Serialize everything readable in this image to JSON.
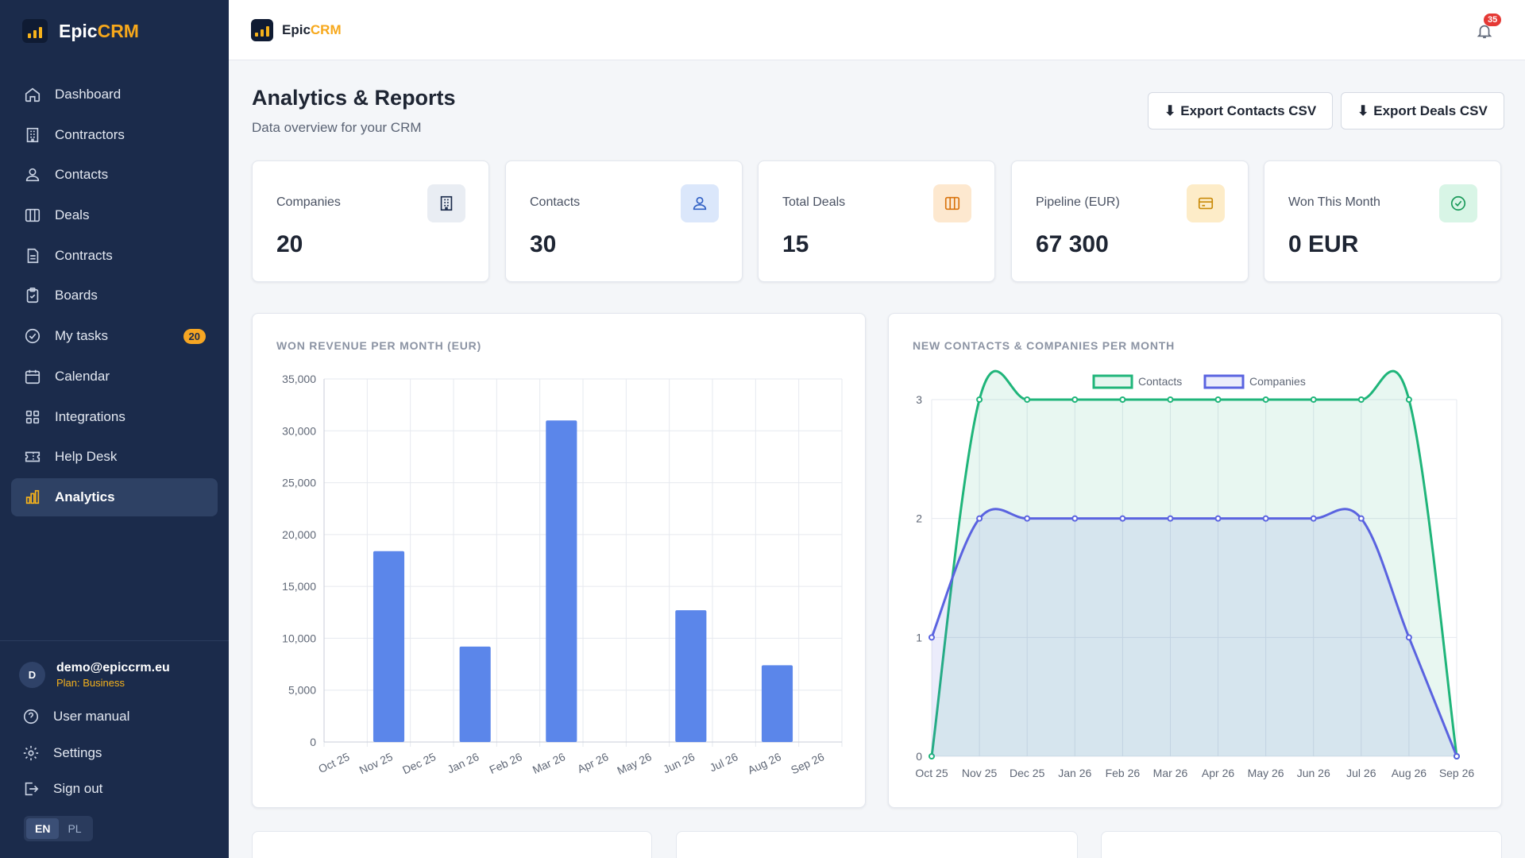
{
  "brand": {
    "name_part1": "Epic",
    "name_part2": "CRM"
  },
  "sidebar": {
    "items": [
      {
        "label": "Dashboard",
        "icon": "home-icon"
      },
      {
        "label": "Contractors",
        "icon": "building-icon"
      },
      {
        "label": "Contacts",
        "icon": "users-icon"
      },
      {
        "label": "Deals",
        "icon": "columns-icon"
      },
      {
        "label": "Contracts",
        "icon": "document-icon"
      },
      {
        "label": "Boards",
        "icon": "clipboard-icon"
      },
      {
        "label": "My tasks",
        "icon": "check-circle-icon",
        "badge": "20"
      },
      {
        "label": "Calendar",
        "icon": "calendar-icon"
      },
      {
        "label": "Integrations",
        "icon": "grid-icon"
      },
      {
        "label": "Help Desk",
        "icon": "ticket-icon"
      },
      {
        "label": "Analytics",
        "icon": "bar-chart-icon",
        "active": true
      }
    ],
    "user": {
      "avatar": "D",
      "email": "demo@epiccrm.eu",
      "plan": "Plan: Business"
    },
    "manual_label": "User manual",
    "settings_label": "Settings",
    "signout_label": "Sign out",
    "lang": {
      "en": "EN",
      "pl": "PL",
      "active": "EN"
    }
  },
  "topbar": {
    "notifications": "35"
  },
  "header": {
    "title": "Analytics & Reports",
    "subtitle": "Data overview for your CRM",
    "export_contacts": "Export Contacts CSV",
    "export_deals": "Export Deals CSV"
  },
  "stats": [
    {
      "label": "Companies",
      "value": "20",
      "icon": "building-icon",
      "color": "#e9edf3",
      "icon_color": "#1b2b4b"
    },
    {
      "label": "Contacts",
      "value": "30",
      "icon": "users-icon",
      "color": "#dbe7fb",
      "icon_color": "#2f5fc4"
    },
    {
      "label": "Total Deals",
      "value": "15",
      "icon": "columns-icon",
      "color": "#fde8cf",
      "icon_color": "#d9730d"
    },
    {
      "label": "Pipeline (EUR)",
      "value": "67 300",
      "icon": "wallet-icon",
      "color": "#fdecc8",
      "icon_color": "#c98a08"
    },
    {
      "label": "Won This Month",
      "value": "0 EUR",
      "icon": "check-circle-icon",
      "color": "#d8f5e6",
      "icon_color": "#1a9a5a"
    }
  ],
  "chart_data": [
    {
      "type": "bar",
      "title": "WON REVENUE PER MONTH (EUR)",
      "categories": [
        "Oct 25",
        "Nov 25",
        "Dec 25",
        "Jan 26",
        "Feb 26",
        "Mar 26",
        "Apr 26",
        "May 26",
        "Jun 26",
        "Jul 26",
        "Aug 26",
        "Sep 26"
      ],
      "values": [
        0,
        18400,
        0,
        9200,
        0,
        31000,
        0,
        0,
        12700,
        0,
        7400,
        0
      ],
      "ylim": [
        0,
        35000
      ],
      "yticks": [
        0,
        5000,
        10000,
        15000,
        20000,
        25000,
        30000,
        35000
      ],
      "ytick_labels": [
        "0",
        "5,000",
        "10,000",
        "15,000",
        "20,000",
        "25,000",
        "30,000",
        "35,000"
      ],
      "color": "#5b86ea",
      "grid": true
    },
    {
      "type": "area",
      "title": "NEW CONTACTS & COMPANIES PER MONTH",
      "categories": [
        "Oct 25",
        "Nov 25",
        "Dec 25",
        "Jan 26",
        "Feb 26",
        "Mar 26",
        "Apr 26",
        "May 26",
        "Jun 26",
        "Jul 26",
        "Aug 26",
        "Sep 26"
      ],
      "series": [
        {
          "name": "Contacts",
          "values": [
            0,
            3,
            3,
            3,
            3,
            3,
            3,
            3,
            3,
            3,
            3,
            0
          ],
          "color": "#1fb57a"
        },
        {
          "name": "Companies",
          "values": [
            1,
            2,
            2,
            2,
            2,
            2,
            2,
            2,
            2,
            2,
            1,
            0
          ],
          "color": "#5a63e0"
        }
      ],
      "ylim": [
        0,
        3
      ],
      "yticks": [
        0,
        1,
        2,
        3
      ],
      "legend": "top-center",
      "grid": true
    }
  ]
}
